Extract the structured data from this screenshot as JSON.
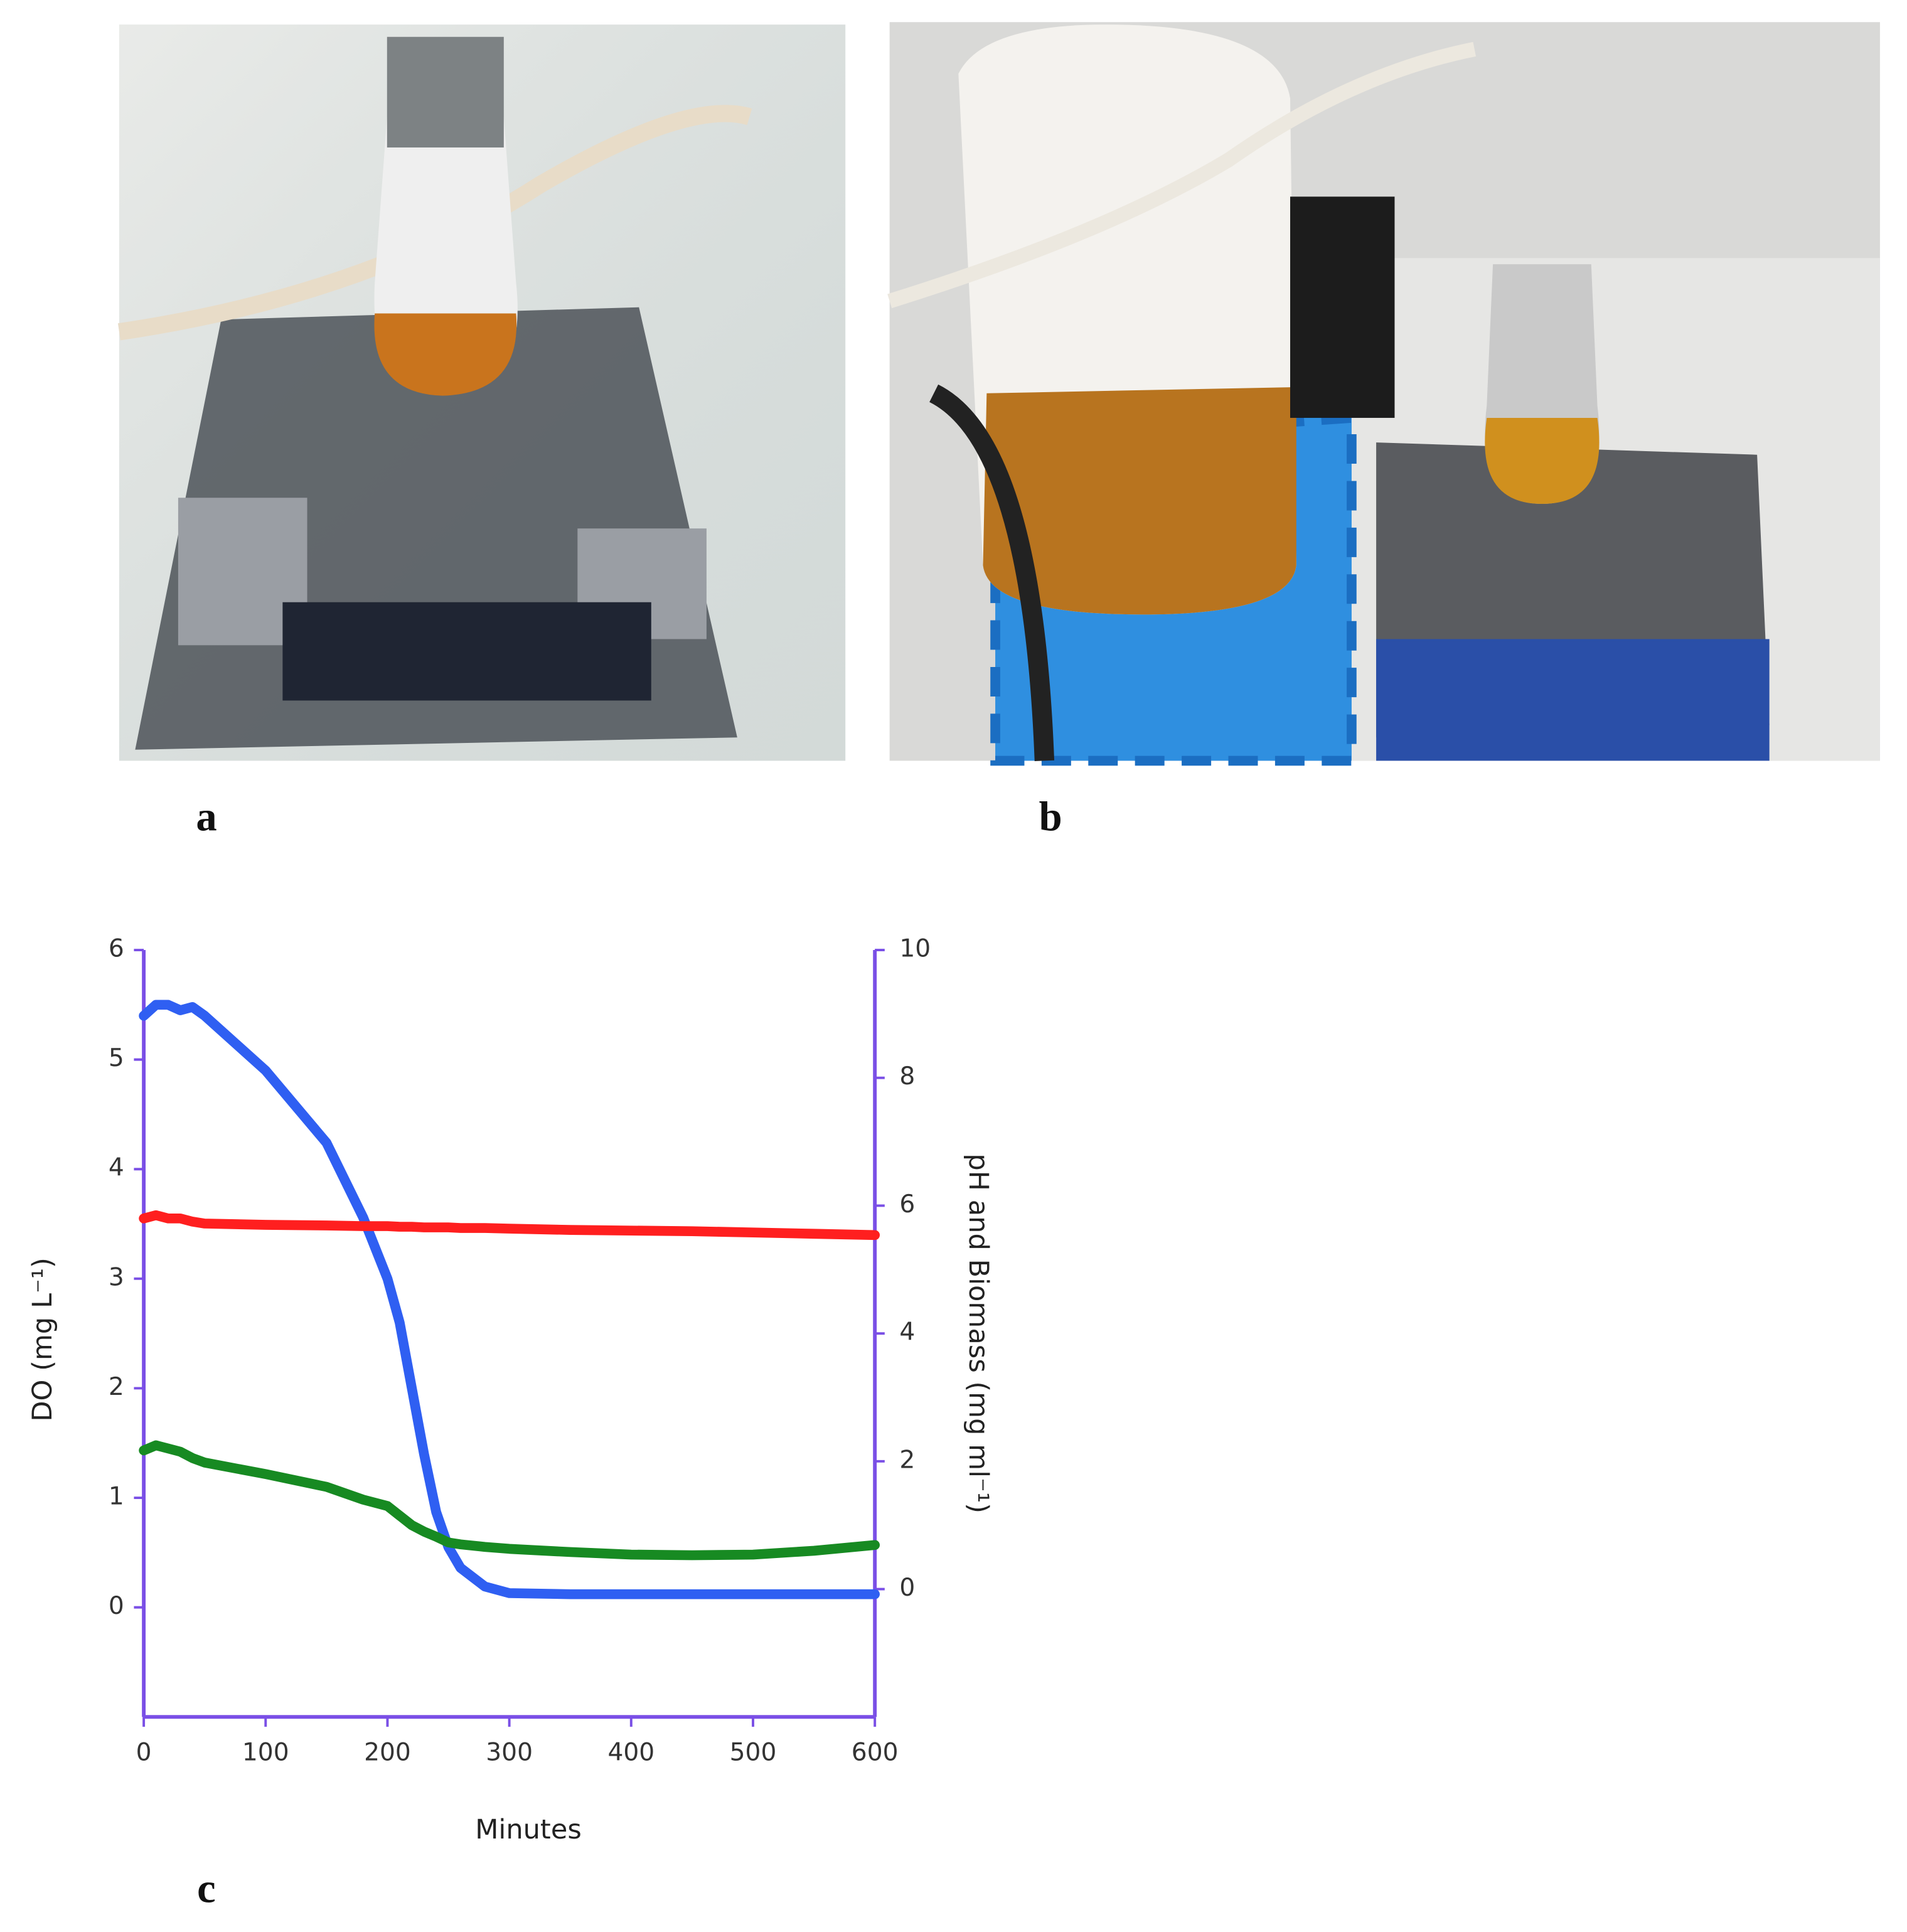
{
  "figure": {
    "labels": [
      "a",
      "b",
      "c"
    ]
  },
  "chart_data": {
    "type": "line",
    "xlabel": "Minutes",
    "ylabel": "DO (mg L⁻¹)",
    "y2label": "pH and Biomass (mg ml⁻¹)",
    "x": [
      0,
      10,
      20,
      30,
      40,
      50,
      100,
      150,
      180,
      200,
      210,
      220,
      230,
      240,
      250,
      260,
      280,
      300,
      350,
      400,
      450,
      500,
      550,
      600
    ],
    "series": [
      {
        "name": "DO",
        "color": "#2f5ff2",
        "values": [
          5.4,
          5.5,
          5.5,
          5.45,
          5.48,
          5.4,
          4.9,
          4.24,
          3.56,
          3.0,
          2.6,
          2.0,
          1.4,
          0.87,
          0.55,
          0.36,
          0.19,
          0.13,
          0.12,
          0.12,
          0.12,
          0.12,
          0.12,
          0.12
        ]
      },
      {
        "name": "pH",
        "color": "#ff1f1f",
        "axis": "y2",
        "values": [
          5.8,
          5.85,
          5.8,
          5.8,
          5.75,
          5.72,
          5.7,
          5.69,
          5.68,
          5.68,
          5.67,
          5.67,
          5.66,
          5.66,
          5.66,
          5.65,
          5.65,
          5.64,
          5.62,
          5.61,
          5.6,
          5.58,
          5.56,
          5.54
        ]
      },
      {
        "name": "Biomass",
        "color": "#178a22",
        "axis": "y2",
        "values": [
          2.17,
          2.25,
          2.2,
          2.15,
          2.05,
          1.98,
          1.8,
          1.6,
          1.4,
          1.3,
          1.15,
          1.0,
          0.9,
          0.82,
          0.73,
          0.7,
          0.66,
          0.63,
          0.58,
          0.54,
          0.53,
          0.54,
          0.6,
          0.69
        ]
      }
    ],
    "xlim": [
      0,
      600
    ],
    "xticks": [
      0,
      100,
      200,
      300,
      400,
      500,
      600
    ],
    "ylim": [
      -1,
      6
    ],
    "yticks": [
      0,
      1,
      2,
      3,
      4,
      5,
      6
    ],
    "y2lim": [
      -2,
      10
    ],
    "y2ticks": [
      0,
      2,
      4,
      6,
      8,
      10
    ],
    "axis_color": "#7a4fe6"
  }
}
